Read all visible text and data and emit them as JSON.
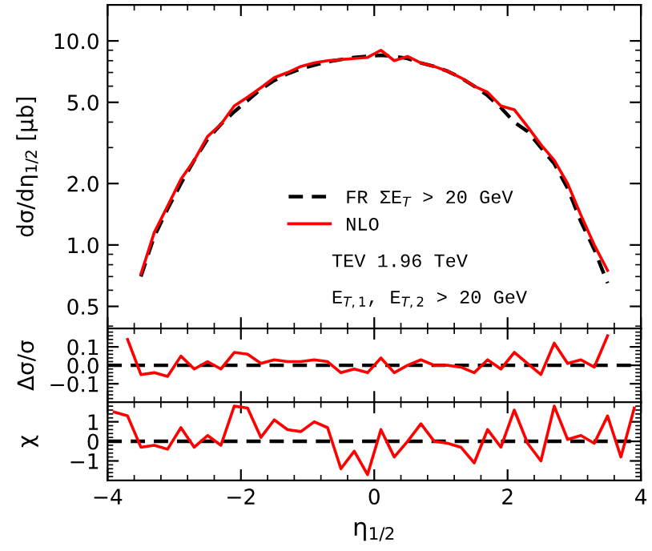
{
  "chart_data": [
    {
      "type": "line",
      "ylabel": "dσ/dη$_{1/2}$ [μb]",
      "log": "y",
      "legend": "bottom",
      "tick_labels": "y",
      "xlim": [
        -4,
        4
      ],
      "xticks": [
        -4,
        -2,
        0,
        2,
        4
      ],
      "ylim": [
        0.39,
        15
      ],
      "yticks": [
        {
          "value": 0.5,
          "label": "0.5"
        },
        {
          "value": 1,
          "label": "1.0"
        },
        {
          "value": 2,
          "label": "2.0"
        },
        {
          "value": 5,
          "label": "5.0"
        },
        {
          "value": 10,
          "label": "10.0"
        }
      ],
      "series": [
        {
          "name": "FR ΣE$_{T}$ > 20 GeV",
          "color": "#000000",
          "line_style": "dashed",
          "x": [
            -3.5,
            -3.3,
            -3.1,
            -2.9,
            -2.7,
            -2.5,
            -2.3,
            -2.1,
            -1.9,
            -1.7,
            -1.5,
            -1.3,
            -1.1,
            -0.9,
            -0.7,
            -0.5,
            -0.3,
            -0.1,
            0.1,
            0.3,
            0.5,
            0.7,
            0.9,
            1.1,
            1.3,
            1.5,
            1.7,
            1.9,
            2.1,
            2.3,
            2.5,
            2.7,
            2.9,
            3.1,
            3.3,
            3.5
          ],
          "values": [
            0.7,
            1.1,
            1.5,
            2.0,
            2.6,
            3.3,
            3.9,
            4.5,
            5.1,
            5.8,
            6.4,
            6.9,
            7.3,
            7.6,
            7.9,
            8.1,
            8.3,
            8.4,
            8.5,
            8.4,
            8.2,
            7.8,
            7.5,
            7.1,
            6.6,
            6.0,
            5.4,
            4.7,
            4.0,
            3.6,
            3.0,
            2.5,
            1.9,
            1.3,
            0.95,
            0.65
          ]
        },
        {
          "name": "NLO",
          "color": "#ff0000",
          "line_style": "solid",
          "x": [
            -3.5,
            -3.3,
            -3.1,
            -2.9,
            -2.7,
            -2.5,
            -2.3,
            -2.1,
            -1.9,
            -1.7,
            -1.5,
            -1.3,
            -1.1,
            -0.9,
            -0.7,
            -0.5,
            -0.3,
            -0.1,
            0.1,
            0.3,
            0.5,
            0.7,
            0.9,
            1.1,
            1.3,
            1.5,
            1.7,
            1.9,
            2.1,
            2.3,
            2.5,
            2.7,
            2.9,
            3.1,
            3.3,
            3.5
          ],
          "values": [
            0.72,
            1.15,
            1.55,
            2.1,
            2.6,
            3.4,
            3.9,
            4.8,
            5.3,
            5.9,
            6.6,
            7.0,
            7.5,
            7.8,
            8.0,
            8.1,
            8.2,
            8.3,
            9.0,
            8.0,
            8.4,
            7.8,
            7.5,
            7.1,
            6.6,
            6.0,
            5.6,
            4.8,
            4.6,
            3.8,
            3.1,
            2.6,
            2.0,
            1.4,
            1.0,
            0.75
          ]
        }
      ],
      "annotations": [
        "TEV 1.96 TeV",
        "E$_{T,1}$, E$_{T,2}$ > 20 GeV"
      ]
    },
    {
      "type": "line",
      "ylabel": "Δσ/σ",
      "tick_labels": "y",
      "xlim": [
        -4,
        4
      ],
      "xticks": [
        -4,
        -2,
        0,
        2,
        4
      ],
      "ylim": [
        -0.2,
        0.2
      ],
      "yticks": [
        {
          "value": -0.1,
          "label": "−0.1"
        },
        {
          "value": 0,
          "label": "0.0"
        },
        {
          "value": 0.1,
          "label": "0.1"
        }
      ],
      "series": [
        {
          "color": "#ff0000",
          "x": [
            -3.7,
            -3.5,
            -3.3,
            -3.1,
            -2.9,
            -2.7,
            -2.5,
            -2.3,
            -2.1,
            -1.9,
            -1.7,
            -1.5,
            -1.3,
            -1.1,
            -0.9,
            -0.7,
            -0.5,
            -0.3,
            -0.1,
            0.1,
            0.3,
            0.5,
            0.7,
            0.9,
            1.1,
            1.3,
            1.5,
            1.7,
            1.9,
            2.1,
            2.3,
            2.5,
            2.7,
            2.9,
            3.1,
            3.3,
            3.5
          ],
          "values": [
            0.14,
            -0.05,
            -0.04,
            -0.06,
            0.05,
            -0.02,
            0.02,
            -0.02,
            0.07,
            0.06,
            0.01,
            0.03,
            0.02,
            0.02,
            0.03,
            0.02,
            -0.04,
            -0.02,
            -0.04,
            0.04,
            -0.04,
            0.0,
            0.03,
            0.0,
            0.0,
            -0.01,
            -0.04,
            0.03,
            -0.02,
            0.07,
            0.01,
            -0.05,
            0.12,
            0.01,
            0.03,
            -0.01,
            0.16
          ]
        }
      ],
      "ref_lines": [
        {
          "axis": "y",
          "value": 0,
          "color": "#000000",
          "line_style": "dashed"
        }
      ]
    },
    {
      "type": "line",
      "ylabel": "χ",
      "xlabel": "η$_{1/2}$",
      "x": [
        -3.9,
        -3.7,
        -3.5,
        -3.3,
        -3.1,
        -2.9,
        -2.7,
        -2.5,
        -2.3,
        -2.1,
        -1.9,
        -1.7,
        -1.5,
        -1.3,
        -1.1,
        -0.9,
        -0.7,
        -0.5,
        -0.3,
        -0.1,
        0.1,
        0.3,
        0.5,
        0.7,
        0.9,
        1.1,
        1.3,
        1.5,
        1.7,
        1.9,
        2.1,
        2.3,
        2.5,
        2.7,
        2.9,
        3.1,
        3.3,
        3.5,
        3.7,
        3.9
      ],
      "xlim": [
        -4,
        4
      ],
      "xticks": [
        {
          "value": -4,
          "label": "−4"
        },
        {
          "value": -2,
          "label": "−2"
        },
        0,
        2,
        4
      ],
      "ylim": [
        -2,
        2
      ],
      "yticks": [
        {
          "value": -1,
          "label": "−1"
        },
        0,
        1
      ],
      "series": [
        {
          "color": "#ff0000",
          "values": [
            1.5,
            1.3,
            -0.3,
            -0.2,
            -0.4,
            0.7,
            -0.3,
            0.3,
            -0.2,
            1.8,
            1.7,
            0.2,
            1.1,
            0.6,
            0.5,
            1.0,
            0.7,
            -1.4,
            -0.5,
            -1.7,
            0.6,
            -0.8,
            0,
            0.9,
            0,
            -0.1,
            -0.3,
            -1.1,
            0.6,
            -0.3,
            1.6,
            -0.1,
            -1.0,
            1.8,
            0.1,
            0.3,
            -0.1,
            1.3,
            -0.8,
            1.7
          ]
        }
      ],
      "ref_lines": [
        {
          "axis": "y",
          "value": 0,
          "color": "#000000",
          "line_style": "dashed"
        }
      ]
    }
  ]
}
